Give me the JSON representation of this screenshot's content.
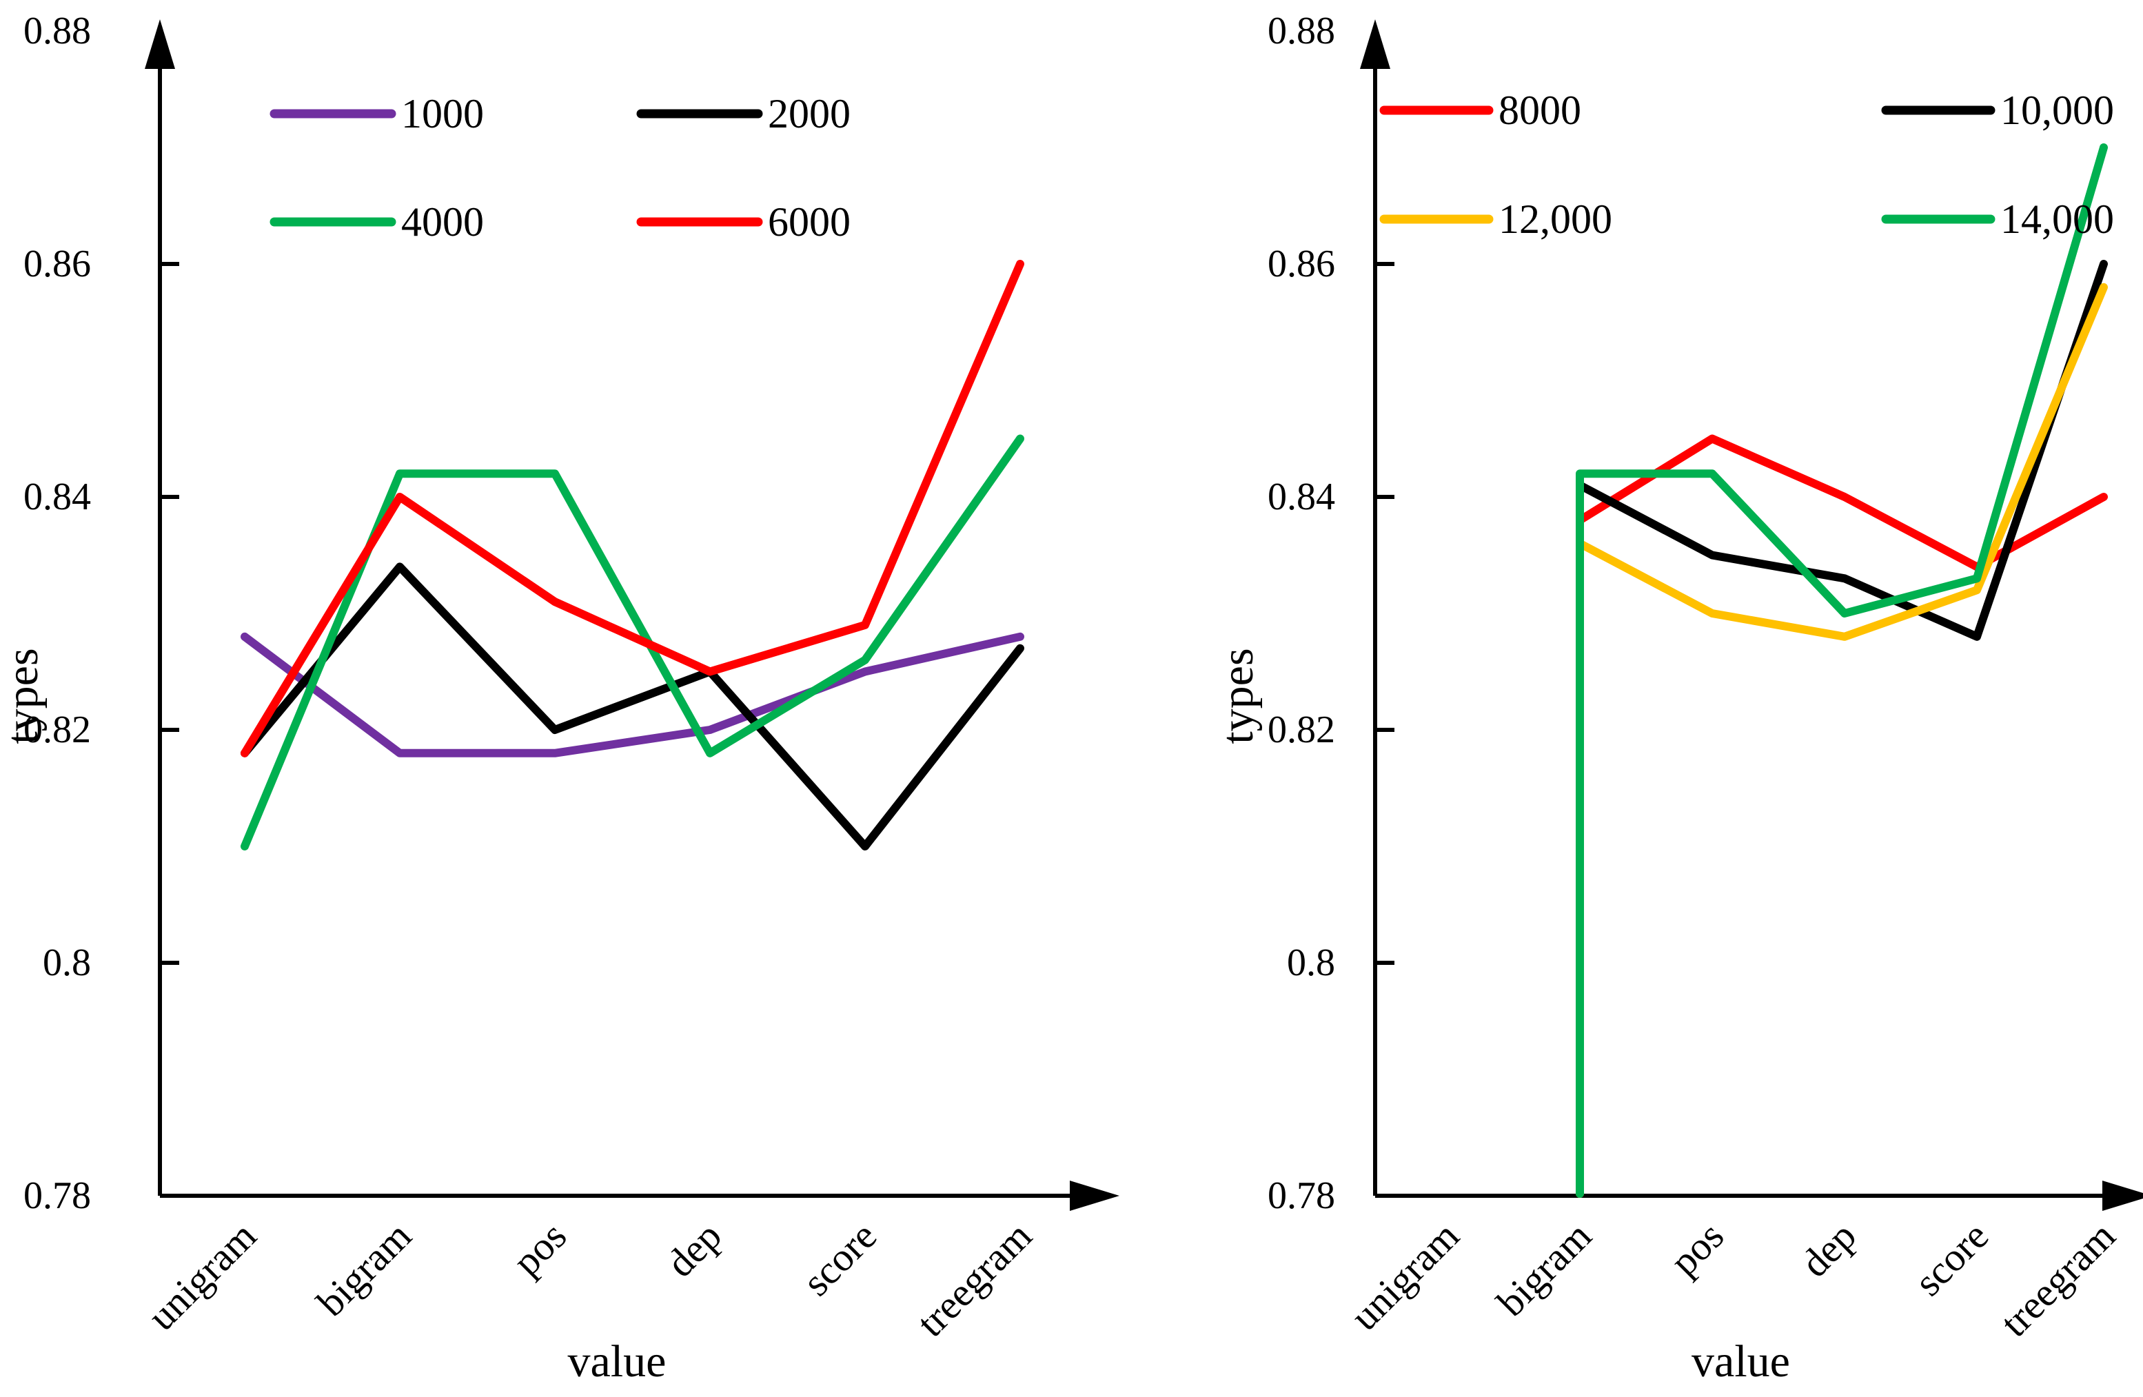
{
  "figure": {
    "background": "#ffffff",
    "axis_color": "#000000"
  },
  "chart_data": [
    {
      "type": "line",
      "panel": "left",
      "title": "",
      "xlabel": "value",
      "ylabel": "types",
      "categories": [
        "unigram",
        "bigram",
        "pos",
        "dep",
        "score",
        "treegram"
      ],
      "ylim": [
        0.78,
        0.88
      ],
      "yticks": [
        0.78,
        0.8,
        0.82,
        0.84,
        0.86,
        0.88
      ],
      "ytick_labels": [
        "0.78",
        "0.8",
        "0.82",
        "0.84",
        "0.86",
        "0.88"
      ],
      "grid": false,
      "legend_position": "top-inside-two-columns",
      "series": [
        {
          "name": "1000",
          "color": "#7030A0",
          "drops_to_axis": false,
          "values": [
            0.828,
            0.818,
            0.818,
            0.82,
            0.825,
            0.828
          ]
        },
        {
          "name": "2000",
          "color": "#000000",
          "drops_to_axis": false,
          "values": [
            0.818,
            0.834,
            0.82,
            0.825,
            0.81,
            0.827
          ]
        },
        {
          "name": "4000",
          "color": "#00B050",
          "drops_to_axis": false,
          "values": [
            0.81,
            0.842,
            0.842,
            0.818,
            0.826,
            0.845
          ]
        },
        {
          "name": "6000",
          "color": "#FF0000",
          "drops_to_axis": false,
          "values": [
            0.818,
            0.84,
            0.831,
            0.825,
            0.829,
            0.86
          ]
        }
      ]
    },
    {
      "type": "line",
      "panel": "right",
      "title": "",
      "xlabel": "value",
      "ylabel": "types",
      "categories": [
        "unigram",
        "bigram",
        "pos",
        "dep",
        "score",
        "treegram"
      ],
      "ylim": [
        0.78,
        0.88
      ],
      "yticks": [
        0.78,
        0.8,
        0.82,
        0.84,
        0.86,
        0.88
      ],
      "ytick_labels": [
        "0.78",
        "0.8",
        "0.82",
        "0.84",
        "0.86",
        "0.88"
      ],
      "grid": false,
      "legend_position": "top-inside-two-columns",
      "note": "series start at bigram; 12,000 and 14,000 rise vertically from the x-axis at bigram",
      "series": [
        {
          "name": "8000",
          "color": "#FF0000",
          "drops_to_axis": false,
          "values": [
            null,
            0.838,
            0.845,
            0.84,
            0.834,
            0.84
          ]
        },
        {
          "name": "10,000",
          "color": "#000000",
          "drops_to_axis": false,
          "values": [
            null,
            0.841,
            0.835,
            0.833,
            0.828,
            0.86
          ]
        },
        {
          "name": "12,000",
          "color": "#FFC000",
          "drops_to_axis": true,
          "values": [
            null,
            0.836,
            0.83,
            0.828,
            0.832,
            0.858
          ]
        },
        {
          "name": "14,000",
          "color": "#00B050",
          "drops_to_axis": true,
          "values": [
            null,
            0.842,
            0.842,
            0.83,
            0.833,
            0.87
          ]
        }
      ]
    }
  ]
}
